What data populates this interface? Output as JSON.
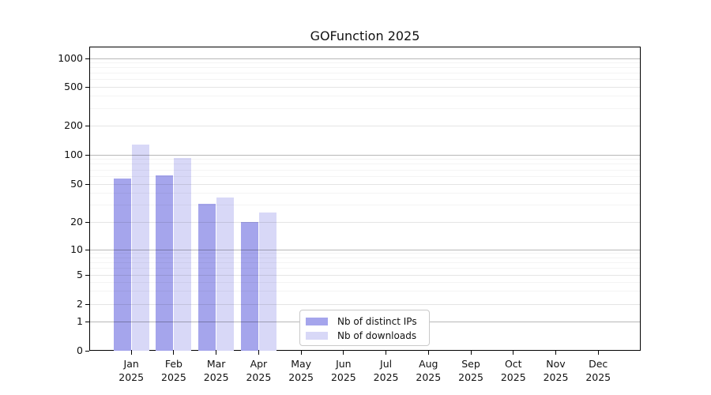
{
  "title": "GOFunction 2025",
  "chart_data": {
    "type": "bar",
    "title": "GOFunction 2025",
    "xlabel": "",
    "ylabel": "",
    "scale": "log-like (symlog)",
    "grid": true,
    "legend_position": "bottom-center-inside",
    "ylim": [
      0,
      1330
    ],
    "y_ticks": [
      0,
      1,
      2,
      5,
      10,
      20,
      50,
      100,
      200,
      500,
      1000
    ],
    "categories": [
      "Jan",
      "Feb",
      "Mar",
      "Apr",
      "May",
      "Jun",
      "Jul",
      "Aug",
      "Sep",
      "Oct",
      "Nov",
      "Dec"
    ],
    "year_label": "2025",
    "series": [
      {
        "name": "Nb of distinct IPs",
        "color": "#a5a5ec",
        "values": [
          57,
          62,
          31,
          20,
          null,
          null,
          null,
          null,
          null,
          null,
          null,
          null
        ]
      },
      {
        "name": "Nb of downloads",
        "color": "#d8d8f7",
        "values": [
          127,
          92,
          36,
          25,
          null,
          null,
          null,
          null,
          null,
          null,
          null,
          null
        ]
      }
    ]
  },
  "colors": {
    "background": "#ffffff",
    "axis": "#000000",
    "major_grid": "rgba(0,0,0,0.28)",
    "labeled_minor_grid": "rgba(0,0,0,0.10)",
    "minor_grid": "rgba(0,0,0,0.045)",
    "text": "#111111",
    "legend_border": "#c9c9c9"
  }
}
